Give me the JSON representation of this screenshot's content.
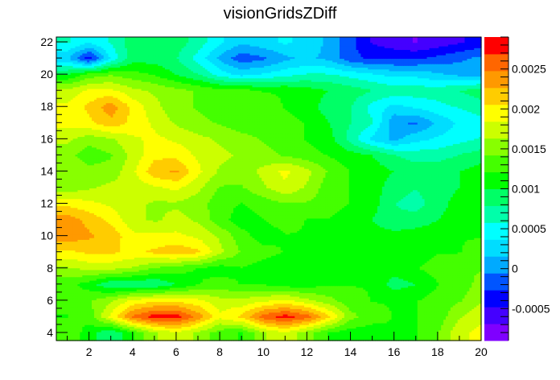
{
  "chart_data": {
    "type": "heatmap",
    "title": "visionGridsZDiff",
    "xlabel": "",
    "ylabel": "",
    "x": [
      1,
      2,
      3,
      4,
      5,
      6,
      7,
      8,
      9,
      10,
      11,
      12,
      13,
      14,
      15,
      16,
      17,
      18,
      19,
      20
    ],
    "y": [
      4,
      5,
      6,
      7,
      8,
      9,
      10,
      11,
      12,
      13,
      14,
      15,
      16,
      17,
      18,
      19,
      20,
      21,
      22
    ],
    "xlim": [
      0.5,
      20
    ],
    "ylim": [
      3.5,
      22.3
    ],
    "zlim": [
      -0.0009,
      0.0029
    ],
    "x_ticks": [
      2,
      4,
      6,
      8,
      10,
      12,
      14,
      16,
      18,
      20
    ],
    "y_ticks": [
      4,
      6,
      8,
      10,
      12,
      14,
      16,
      18,
      20,
      22
    ],
    "z_ticks": [
      -0.0005,
      0,
      0.0005,
      0.001,
      0.0015,
      0.002,
      0.0025
    ],
    "x_tick_labels": [
      "2",
      "4",
      "6",
      "8",
      "10",
      "12",
      "14",
      "16",
      "18",
      "20"
    ],
    "y_tick_labels": [
      "4",
      "6",
      "8",
      "10",
      "12",
      "14",
      "16",
      "18",
      "20",
      "22"
    ],
    "z_tick_labels": [
      "-0.0005",
      "0",
      "0.0005",
      "0.001",
      "0.0015",
      "0.002",
      "0.0025"
    ],
    "colorbar_colors": [
      "#7f00ff",
      "#4400ff",
      "#0000ff",
      "#0055ff",
      "#00aaff",
      "#00ddff",
      "#00ffff",
      "#00ffaa",
      "#00ff66",
      "#00ff00",
      "#44ff00",
      "#88ff00",
      "#ccff00",
      "#ffff00",
      "#ffcc00",
      "#ff9900",
      "#ff6600",
      "#ff0000"
    ],
    "z_rows_by_y": [
      [
        0.0014,
        0.0011,
        0.0008,
        0.0012,
        0.0016,
        0.0018,
        0.0016,
        0.0013,
        0.0012,
        0.0016,
        0.0018,
        0.0015,
        0.0012,
        0.0011,
        0.0011,
        0.0012,
        0.0012,
        0.0014,
        0.0018,
        0.0019
      ],
      [
        0.0012,
        0.0013,
        0.0019,
        0.0025,
        0.0028,
        0.0028,
        0.0024,
        0.0019,
        0.0021,
        0.0026,
        0.0028,
        0.0026,
        0.0021,
        0.0015,
        0.0013,
        0.0012,
        0.0012,
        0.0013,
        0.0016,
        0.0018
      ],
      [
        0.0013,
        0.0014,
        0.0016,
        0.0019,
        0.002,
        0.002,
        0.0019,
        0.0017,
        0.0017,
        0.0018,
        0.0019,
        0.0017,
        0.0015,
        0.0013,
        0.0012,
        0.0012,
        0.0012,
        0.0013,
        0.0014,
        0.0016
      ],
      [
        0.0013,
        0.0011,
        0.0008,
        0.0008,
        0.0008,
        0.001,
        0.0012,
        0.0013,
        0.0012,
        0.0012,
        0.0011,
        0.0011,
        0.0012,
        0.0012,
        0.0012,
        0.0009,
        0.001,
        0.0012,
        0.0013,
        0.0015
      ],
      [
        0.0016,
        0.0017,
        0.0017,
        0.0016,
        0.0014,
        0.0013,
        0.0012,
        0.0011,
        0.0012,
        0.0011,
        0.001,
        0.001,
        0.0011,
        0.0011,
        0.0011,
        0.0011,
        0.0012,
        0.0013,
        0.0014,
        0.0014
      ],
      [
        0.002,
        0.0021,
        0.0021,
        0.002,
        0.0021,
        0.0022,
        0.0021,
        0.0017,
        0.0014,
        0.0013,
        0.0012,
        0.0012,
        0.0012,
        0.0011,
        0.0011,
        0.0011,
        0.0011,
        0.0012,
        0.0012,
        0.0013
      ],
      [
        0.0024,
        0.0023,
        0.0022,
        0.0019,
        0.0019,
        0.0019,
        0.0018,
        0.0016,
        0.0013,
        0.0011,
        0.0012,
        0.0012,
        0.0012,
        0.0011,
        0.0011,
        0.0011,
        0.0011,
        0.0011,
        0.0012,
        0.0012
      ],
      [
        0.0024,
        0.0022,
        0.002,
        0.0017,
        0.0016,
        0.0017,
        0.0016,
        0.0013,
        0.0011,
        0.0012,
        0.0013,
        0.0012,
        0.0012,
        0.0011,
        0.001,
        0.0008,
        0.0009,
        0.001,
        0.0011,
        0.0012
      ],
      [
        0.002,
        0.0019,
        0.0018,
        0.0017,
        0.0016,
        0.0016,
        0.0015,
        0.0013,
        0.0012,
        0.0013,
        0.0014,
        0.0014,
        0.0013,
        0.0012,
        0.0011,
        0.0008,
        0.0007,
        0.0009,
        0.0011,
        0.0012
      ],
      [
        0.0015,
        0.0016,
        0.0017,
        0.0017,
        0.0018,
        0.0019,
        0.0017,
        0.0014,
        0.0014,
        0.0016,
        0.0018,
        0.0016,
        0.0013,
        0.0012,
        0.0011,
        0.0009,
        0.0008,
        0.0009,
        0.001,
        0.0011
      ],
      [
        0.0016,
        0.0015,
        0.0015,
        0.0018,
        0.0022,
        0.0023,
        0.0019,
        0.0016,
        0.0015,
        0.0017,
        0.0019,
        0.0017,
        0.0014,
        0.0012,
        0.0011,
        0.001,
        0.0009,
        0.0009,
        0.001,
        0.0011
      ],
      [
        0.0015,
        0.0013,
        0.0014,
        0.0017,
        0.002,
        0.002,
        0.0018,
        0.0017,
        0.0016,
        0.0015,
        0.0014,
        0.0013,
        0.0012,
        0.0011,
        0.001,
        0.0008,
        0.0007,
        0.0007,
        0.0008,
        0.0009
      ],
      [
        0.0017,
        0.0015,
        0.0016,
        0.0018,
        0.0019,
        0.0018,
        0.0017,
        0.0016,
        0.0015,
        0.0014,
        0.0013,
        0.0012,
        0.0011,
        0.0007,
        0.0003,
        0.0001,
        0.0003,
        0.0004,
        0.0005,
        0.0006
      ],
      [
        0.0019,
        0.002,
        0.0022,
        0.002,
        0.0018,
        0.0016,
        0.0015,
        0.0014,
        0.0013,
        0.0013,
        0.0013,
        0.0012,
        0.001,
        0.0008,
        0.0006,
        0.0,
        -0.0001,
        0.0002,
        0.0004,
        0.0005
      ],
      [
        0.0019,
        0.0021,
        0.0024,
        0.002,
        0.0017,
        0.0015,
        0.0014,
        0.0013,
        0.0013,
        0.0013,
        0.0012,
        0.0011,
        0.0009,
        0.0008,
        0.0005,
        0.0003,
        0.0004,
        0.0005,
        0.0006,
        0.0007
      ],
      [
        0.0017,
        0.0019,
        0.0019,
        0.0017,
        0.0016,
        0.0015,
        0.0014,
        0.0013,
        0.0013,
        0.0012,
        0.0012,
        0.0011,
        0.001,
        0.0009,
        0.0008,
        0.0007,
        0.0007,
        0.0007,
        0.0008,
        0.0009
      ],
      [
        0.001,
        0.0013,
        0.0014,
        0.0013,
        0.0012,
        0.001,
        0.0008,
        0.0005,
        0.0003,
        0.0004,
        0.0005,
        0.0006,
        0.0006,
        0.0005,
        0.0004,
        0.0003,
        0.0003,
        0.0002,
        0.0001,
        0.0001
      ],
      [
        0.0002,
        -0.0004,
        0.0004,
        0.0009,
        0.0009,
        0.0008,
        0.0005,
        0.0001,
        -0.0002,
        -0.0001,
        0.0001,
        0.0002,
        0.0001,
        -0.0002,
        -0.0003,
        -0.0003,
        -0.0003,
        -0.0002,
        -0.0001,
        0.0
      ],
      [
        0.0006,
        0.0004,
        0.0006,
        0.0009,
        0.001,
        0.0009,
        0.0007,
        0.0004,
        0.0002,
        0.0003,
        0.0004,
        0.0003,
        0.0001,
        -0.0002,
        -0.0005,
        -0.0006,
        -0.0007,
        -0.0006,
        -0.0005,
        -0.0004
      ]
    ]
  }
}
